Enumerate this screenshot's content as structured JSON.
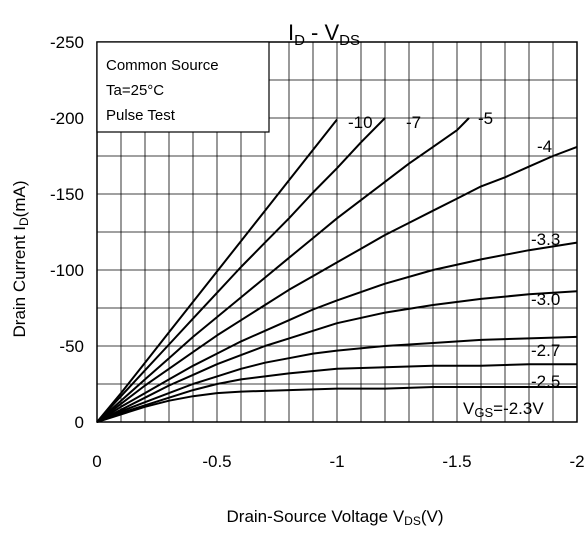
{
  "chart_data": {
    "type": "line",
    "title": {
      "main": "I",
      "sub1": "D",
      "mid": " - V",
      "sub2": "DS"
    },
    "xlabel": {
      "pre": "Drain-Source Voltage V",
      "sub": "DS",
      "post": "(V)"
    },
    "ylabel": {
      "pre": "Drain Current I",
      "sub": "D",
      "post": "(mA)"
    },
    "xlim": [
      0,
      -2
    ],
    "ylim": [
      0,
      -250
    ],
    "x_ticks": [
      0,
      -0.5,
      -1,
      -1.5,
      -2
    ],
    "x_tick_labels": [
      "0",
      "-0.5",
      "-1",
      "-1.5",
      "-2"
    ],
    "y_ticks": [
      0,
      -50,
      -100,
      -150,
      -200,
      -250
    ],
    "y_tick_labels": [
      "0",
      "-50",
      "-100",
      "-150",
      "-200",
      "-250"
    ],
    "grid": true,
    "legend_box": {
      "lines": [
        "Common Source",
        "Ta=25°C",
        "Pulse Test"
      ],
      "placement": "top-left"
    },
    "vgs_label": {
      "pre": "V",
      "sub": "GS",
      "post": "=-2.3V"
    },
    "series": [
      {
        "name": "-10",
        "x": [
          0,
          -0.1,
          -0.2,
          -0.3,
          -0.4,
          -0.5,
          -0.6,
          -0.7,
          -0.8,
          -0.9,
          -1.0
        ],
        "y": [
          0,
          -19,
          -39,
          -59,
          -79,
          -99,
          -119,
          -139,
          -159,
          -179,
          -199
        ]
      },
      {
        "name": "-7",
        "x": [
          0,
          -0.1,
          -0.2,
          -0.3,
          -0.4,
          -0.5,
          -0.6,
          -0.7,
          -0.8,
          -0.9,
          -1.0,
          -1.1,
          -1.2
        ],
        "y": [
          0,
          -17,
          -34,
          -51,
          -68,
          -85,
          -102,
          -118,
          -134,
          -151,
          -167,
          -184,
          -200
        ]
      },
      {
        "name": "-5",
        "x": [
          0,
          -0.1,
          -0.2,
          -0.3,
          -0.4,
          -0.5,
          -0.6,
          -0.7,
          -0.8,
          -0.9,
          -1.0,
          -1.1,
          -1.2,
          -1.3,
          -1.4,
          -1.5,
          -1.55
        ],
        "y": [
          0,
          -14,
          -28,
          -42,
          -56,
          -69,
          -82,
          -95,
          -108,
          -121,
          -134,
          -146,
          -158,
          -170,
          -181,
          -192,
          -200
        ]
      },
      {
        "name": "-4",
        "x": [
          0,
          -0.1,
          -0.2,
          -0.3,
          -0.4,
          -0.5,
          -0.6,
          -0.7,
          -0.8,
          -0.9,
          -1.0,
          -1.1,
          -1.2,
          -1.3,
          -1.4,
          -1.5,
          -1.6,
          -1.7,
          -1.8,
          -1.9,
          -2.0
        ],
        "y": [
          0,
          -12,
          -24,
          -35,
          -46,
          -57,
          -67,
          -77,
          -87,
          -96,
          -105,
          -114,
          -123,
          -131,
          -139,
          -147,
          -155,
          -161,
          -168,
          -175,
          -181
        ]
      },
      {
        "name": "-3.3",
        "x": [
          0,
          -0.1,
          -0.2,
          -0.3,
          -0.4,
          -0.5,
          -0.6,
          -0.7,
          -0.8,
          -0.9,
          -1.0,
          -1.2,
          -1.4,
          -1.6,
          -1.8,
          -2.0
        ],
        "y": [
          0,
          -10,
          -19,
          -28,
          -37,
          -45,
          -53,
          -60,
          -67,
          -74,
          -80,
          -91,
          -100,
          -107,
          -113,
          -118
        ]
      },
      {
        "name": "-3.0",
        "x": [
          0,
          -0.1,
          -0.2,
          -0.3,
          -0.4,
          -0.5,
          -0.6,
          -0.7,
          -0.8,
          -0.9,
          -1.0,
          -1.2,
          -1.4,
          -1.6,
          -1.8,
          -2.0
        ],
        "y": [
          0,
          -8,
          -16,
          -24,
          -31,
          -38,
          -44,
          -50,
          -55,
          -60,
          -65,
          -72,
          -77,
          -81,
          -84,
          -86
        ]
      },
      {
        "name": "-2.7",
        "x": [
          0,
          -0.1,
          -0.2,
          -0.3,
          -0.4,
          -0.5,
          -0.6,
          -0.7,
          -0.8,
          -0.9,
          -1.0,
          -1.2,
          -1.4,
          -1.6,
          -1.8,
          -2.0
        ],
        "y": [
          0,
          -7,
          -13,
          -19,
          -25,
          -30,
          -35,
          -39,
          -42,
          -45,
          -47,
          -50,
          -52,
          -54,
          -55,
          -56
        ]
      },
      {
        "name": "-2.5",
        "x": [
          0,
          -0.1,
          -0.2,
          -0.3,
          -0.4,
          -0.5,
          -0.6,
          -0.7,
          -0.8,
          -1.0,
          -1.2,
          -1.4,
          -1.6,
          -1.8,
          -2.0
        ],
        "y": [
          0,
          -6,
          -11,
          -16,
          -21,
          -25,
          -28,
          -30,
          -32,
          -35,
          -36,
          -37,
          -37,
          -38,
          -38
        ]
      },
      {
        "name": "-2.3",
        "x": [
          0,
          -0.1,
          -0.2,
          -0.3,
          -0.4,
          -0.5,
          -0.6,
          -0.8,
          -1.0,
          -1.2,
          -1.4,
          -1.6,
          -1.8,
          -2.0
        ],
        "y": [
          0,
          -5,
          -10,
          -14,
          -17,
          -19,
          -20,
          -21,
          -22,
          -22,
          -23,
          -23,
          -23,
          -23
        ]
      }
    ],
    "curve_labels": [
      "-10",
      "-7",
      "-5",
      "-4",
      "-3.3",
      "-3.0",
      "-2.7",
      "-2.5"
    ]
  }
}
